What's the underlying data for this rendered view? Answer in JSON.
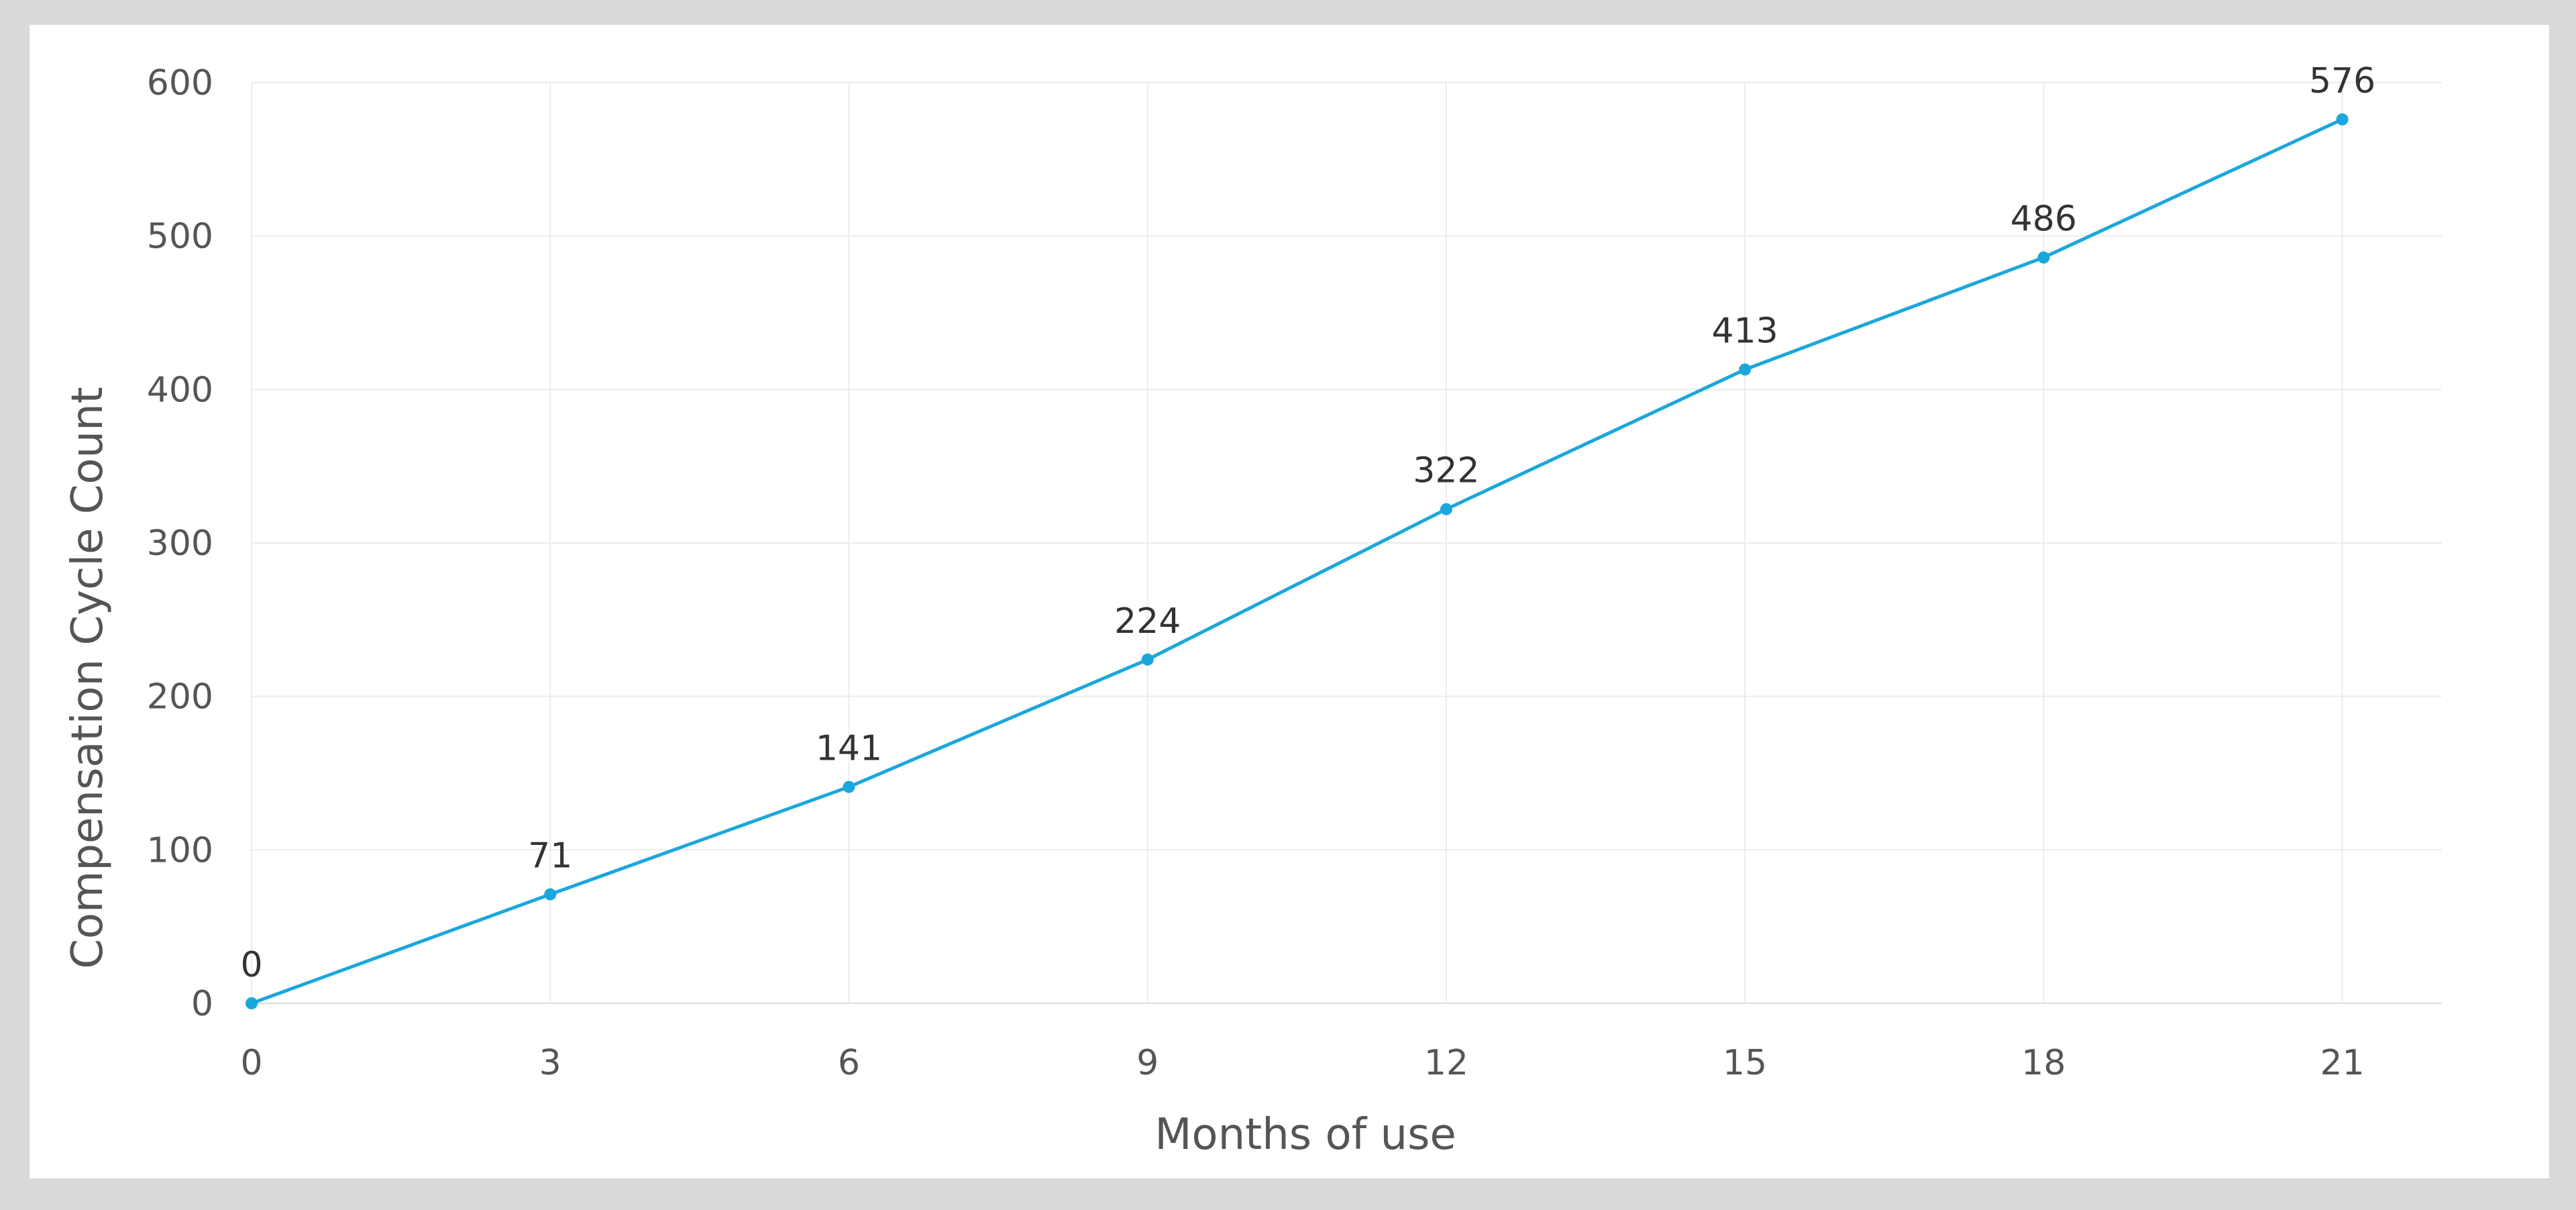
{
  "chart_data": {
    "type": "line",
    "title": "",
    "xlabel": "Months of use",
    "ylabel": "Compensation Cycle Count",
    "x": [
      0,
      3,
      6,
      9,
      12,
      15,
      18,
      21
    ],
    "series": [
      {
        "values": [
          0,
          71,
          141,
          224,
          322,
          413,
          486,
          576
        ]
      }
    ],
    "xlim": [
      0,
      22
    ],
    "ylim": [
      0,
      600
    ],
    "xticks": [
      0,
      3,
      6,
      9,
      12,
      15,
      18,
      21
    ],
    "yticks": [
      0,
      100,
      200,
      300,
      400,
      500,
      600
    ],
    "grid": true,
    "data_labels": true,
    "colors": {
      "line": "#1aa7dc",
      "background": "#ffffff",
      "frame": "#d9d9d9"
    }
  }
}
